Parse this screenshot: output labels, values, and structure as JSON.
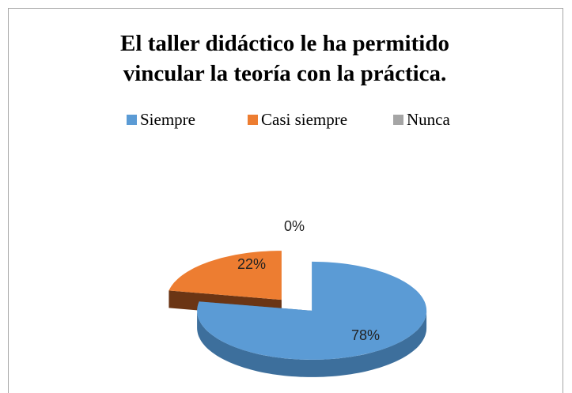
{
  "chart_data": {
    "type": "pie3d",
    "title": "El taller didáctico le ha permitido vincular la teoría con la práctica.",
    "categories": [
      "Siempre",
      "Casi siempre",
      "Nunca"
    ],
    "values": [
      78,
      22,
      0
    ],
    "value_labels": [
      "78%",
      "22%",
      "0%"
    ],
    "colors": [
      "#5b9bd5",
      "#ed7d31",
      "#a5a5a5"
    ],
    "side_colors": [
      "#3d6f9c",
      "#6b3514",
      "#707070"
    ],
    "legend": "top"
  }
}
